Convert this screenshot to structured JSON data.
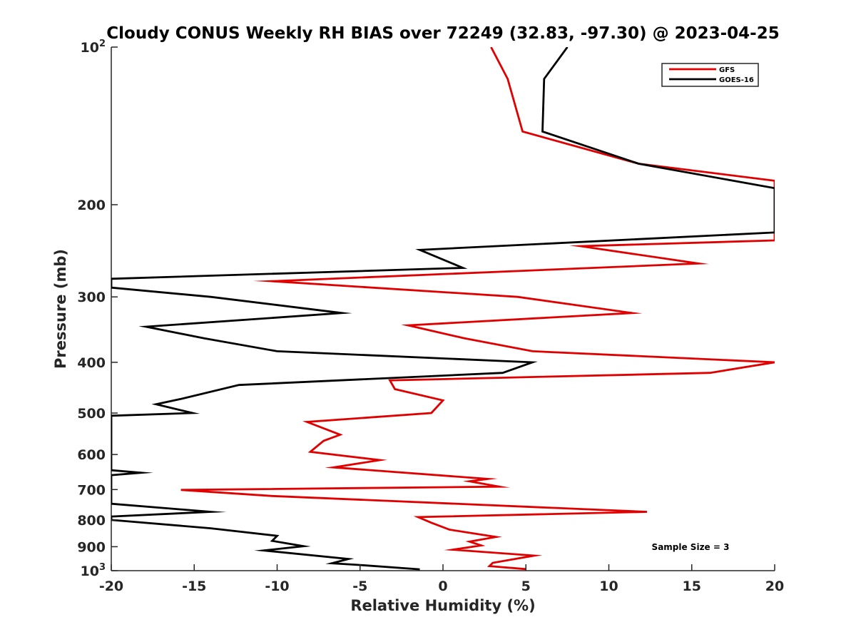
{
  "chart_data": {
    "type": "line",
    "title": "Cloudy CONUS Weekly RH BIAS over 72249 (32.83, -97.30) @ 2023-04-25",
    "xlabel": "Relative Humidity (%)",
    "ylabel": "Pressure (mb)",
    "xlim": [
      -20,
      20
    ],
    "ylim": [
      100,
      1000
    ],
    "y_scale": "log",
    "y_reversed": true,
    "grid": false,
    "legend_position": "top-right",
    "x_ticks": [
      "-20",
      "-15",
      "-10",
      "-5",
      "0",
      "5",
      "10",
      "15",
      "20"
    ],
    "x_tick_values": [
      -20,
      -15,
      -10,
      -5,
      0,
      5,
      10,
      15,
      20
    ],
    "y_ticks": [
      {
        "value": 100,
        "base": "10",
        "exp": "2"
      },
      {
        "value": 200,
        "base": "200",
        "exp": ""
      },
      {
        "value": 300,
        "base": "300",
        "exp": ""
      },
      {
        "value": 400,
        "base": "400",
        "exp": ""
      },
      {
        "value": 500,
        "base": "500",
        "exp": ""
      },
      {
        "value": 600,
        "base": "600",
        "exp": ""
      },
      {
        "value": 700,
        "base": "700",
        "exp": ""
      },
      {
        "value": 800,
        "base": "800",
        "exp": ""
      },
      {
        "value": 900,
        "base": "900",
        "exp": ""
      },
      {
        "value": 1000,
        "base": "10",
        "exp": "3"
      }
    ],
    "annotation": "Sample Size = 3",
    "series": [
      {
        "name": "GFS",
        "color": "#e00000",
        "points": [
          [
            2.9,
            100
          ],
          [
            3.9,
            115
          ],
          [
            4.8,
            145
          ],
          [
            11.8,
            167
          ],
          [
            20,
            180
          ],
          [
            20,
            234
          ],
          [
            8.3,
            240
          ],
          [
            15.4,
            259
          ],
          [
            -10.3,
            280
          ],
          [
            4.5,
            300
          ],
          [
            11.4,
            322
          ],
          [
            -2.1,
            340
          ],
          [
            1.3,
            360
          ],
          [
            5.4,
            381
          ],
          [
            20,
            400
          ],
          [
            16.1,
            419
          ],
          [
            -3.2,
            433
          ],
          [
            -2.9,
            450
          ],
          [
            0,
            473
          ],
          [
            -0.7,
            500
          ],
          [
            -8.2,
            520
          ],
          [
            -6.2,
            550
          ],
          [
            -7.2,
            565
          ],
          [
            -8.0,
            593
          ],
          [
            -3.8,
            615
          ],
          [
            -6.6,
            635
          ],
          [
            2.7,
            668
          ],
          [
            1.6,
            675
          ],
          [
            3.4,
            691
          ],
          [
            -15.8,
            701
          ],
          [
            -10.3,
            720
          ],
          [
            12.3,
            772
          ],
          [
            -1.5,
            790
          ],
          [
            -0.7,
            810
          ],
          [
            0.4,
            835
          ],
          [
            3.2,
            862
          ],
          [
            1.6,
            880
          ],
          [
            2.3,
            895
          ],
          [
            0.6,
            912
          ],
          [
            5.5,
            936
          ],
          [
            3.0,
            966
          ],
          [
            2.8,
            980
          ],
          [
            5.0,
            993
          ]
        ]
      },
      {
        "name": "GOES-16",
        "color": "#000000",
        "points": [
          [
            7.5,
            100
          ],
          [
            6.1,
            115
          ],
          [
            6.0,
            145
          ],
          [
            11.8,
            167
          ],
          [
            20,
            186
          ],
          [
            20,
            226
          ],
          [
            -1.4,
            244
          ],
          [
            1.2,
            264
          ],
          [
            -20,
            277
          ],
          [
            -20,
            288
          ],
          [
            -14,
            300
          ],
          [
            -6.1,
            322
          ],
          [
            -17.9,
            342
          ],
          [
            -14.4,
            360
          ],
          [
            -10.0,
            381
          ],
          [
            5.4,
            400
          ],
          [
            3.6,
            419
          ],
          [
            -12.3,
            442
          ],
          [
            -15.8,
            470
          ],
          [
            -17.3,
            481
          ],
          [
            -15.1,
            500
          ],
          [
            -20,
            506
          ],
          [
            -20,
            643
          ],
          [
            -18.2,
            650
          ],
          [
            -20,
            657
          ],
          [
            -20,
            745
          ],
          [
            -14.0,
            772
          ],
          [
            -20,
            788
          ],
          [
            -20,
            800
          ],
          [
            -14.0,
            830
          ],
          [
            -10.0,
            858
          ],
          [
            -10.3,
            877
          ],
          [
            -8.4,
            898
          ],
          [
            -10.8,
            915
          ],
          [
            -5.7,
            950
          ],
          [
            -6.7,
            968
          ],
          [
            -5.3,
            974
          ],
          [
            -1.4,
            994
          ]
        ]
      }
    ]
  }
}
